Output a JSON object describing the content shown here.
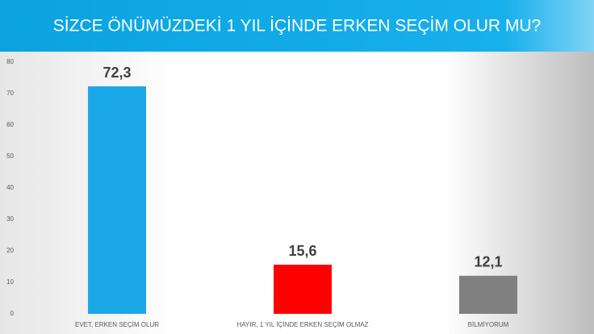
{
  "chart_data": {
    "type": "bar",
    "title": "SİZCE ÖNÜMÜZDEKİ 1 YIL İÇİNDE ERKEN SEÇİM OLUR MU?",
    "categories": [
      "EVET, ERKEN SEÇİM OLUR",
      "HAYIR, 1 YIL İÇİNDE ERKEN SEÇİM OLMAZ",
      "BİLMİYORUM"
    ],
    "values": [
      72.3,
      15.6,
      12.1
    ],
    "value_labels": [
      "72,3",
      "15,6",
      "12,1"
    ],
    "colors": [
      "#1ba8e8",
      "#ff0000",
      "#808080"
    ],
    "ylim": [
      0,
      80
    ],
    "yticks": [
      0,
      10,
      20,
      30,
      40,
      50,
      60,
      70,
      80
    ],
    "grid": false
  }
}
